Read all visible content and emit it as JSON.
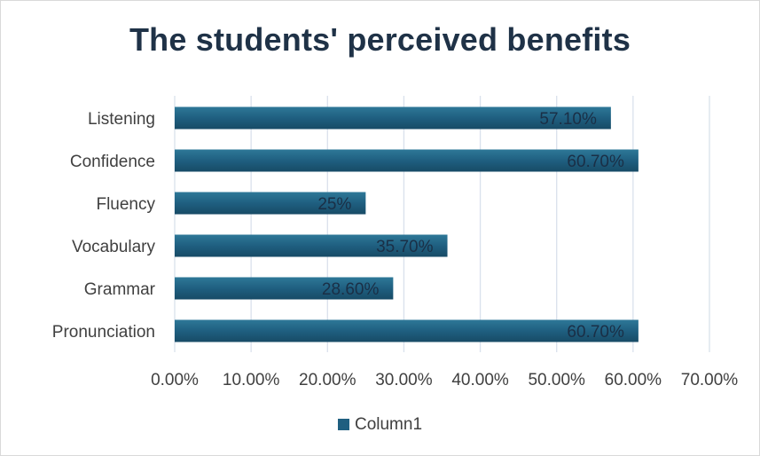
{
  "chart_data": {
    "type": "bar",
    "orientation": "horizontal",
    "title": "The students' perceived benefits",
    "categories": [
      "Listening",
      "Confidence",
      "Fluency",
      "Vocabulary",
      "Grammar",
      "Pronunciation"
    ],
    "series": [
      {
        "name": "Column1",
        "values": [
          57.1,
          60.7,
          25,
          35.7,
          28.6,
          60.7
        ],
        "labels": [
          "57.10%",
          "60.70%",
          "25%",
          "35.70%",
          "28.60%",
          "60.70%"
        ]
      }
    ],
    "xlim": [
      0,
      70
    ],
    "xticks": [
      0,
      10,
      20,
      30,
      40,
      50,
      60,
      70
    ],
    "xtick_labels": [
      "0.00%",
      "10.00%",
      "20.00%",
      "30.00%",
      "40.00%",
      "50.00%",
      "60.00%",
      "70.00%"
    ],
    "grid": "vertical",
    "legend_position": "bottom",
    "bar_color": "#1f5f80",
    "bar_color_light": "#2e7898",
    "bar_color_dark": "#174b66"
  }
}
